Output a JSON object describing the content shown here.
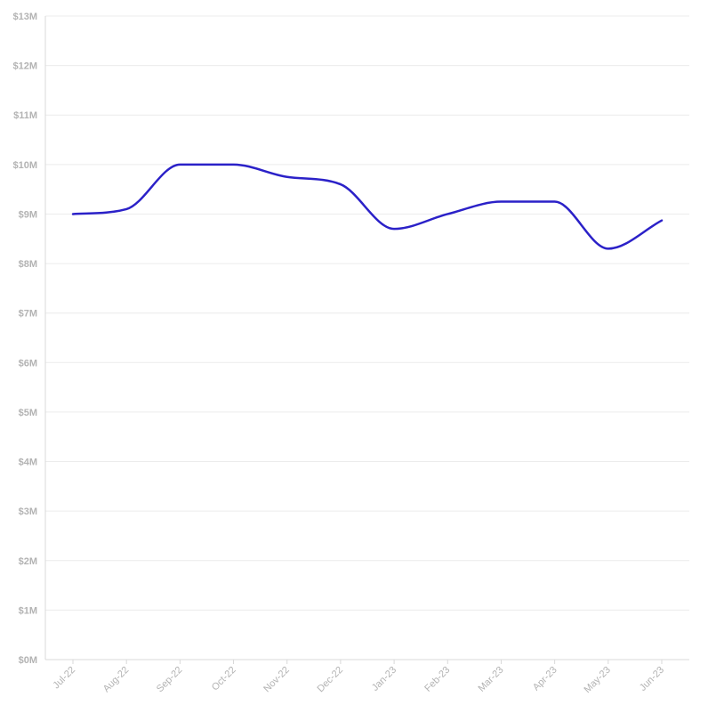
{
  "chart_data": {
    "type": "line",
    "categories": [
      "Jul-22",
      "Aug-22",
      "Sep-22",
      "Oct-22",
      "Nov-22",
      "Dec-22",
      "Jan-23",
      "Feb-23",
      "Mar-23",
      "Apr-23",
      "May-23",
      "Jun-23"
    ],
    "series": [
      {
        "values": [
          9.0,
          9.1,
          10.0,
          10.0,
          9.75,
          9.6,
          8.7,
          9.0,
          9.25,
          9.25,
          8.3,
          8.87
        ]
      }
    ],
    "yticks": [
      "$0M",
      "$1M",
      "$2M",
      "$3M",
      "$4M",
      "$5M",
      "$6M",
      "$7M",
      "$8M",
      "$9M",
      "$10M",
      "$11M",
      "$12M",
      "$13M"
    ],
    "ylim": [
      0,
      13
    ],
    "grid": true,
    "line_color": "#2b21c8"
  }
}
